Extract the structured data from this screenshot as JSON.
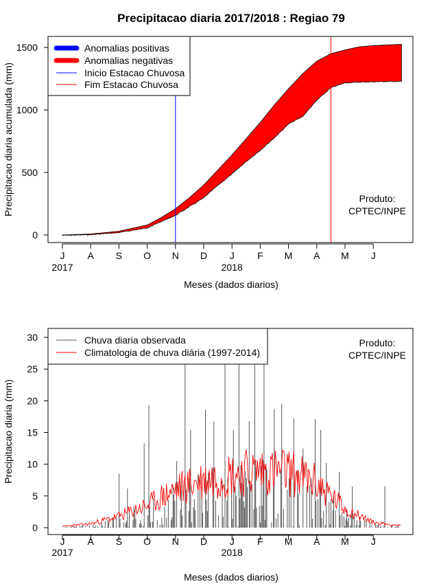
{
  "title": "Precipitacao diaria 2017/2018 : Regiao 79",
  "charts": [
    {
      "type": "area",
      "xlabel": "Meses (dados diarios)",
      "ylabel": "Precipitacao diaria acumulada (mm)",
      "ylim": [
        0,
        1500
      ],
      "yticks": [
        0,
        500,
        1000,
        1500
      ],
      "months": [
        "J",
        "A",
        "S",
        "O",
        "N",
        "D",
        "J",
        "F",
        "M",
        "A",
        "M",
        "J"
      ],
      "years": [
        {
          "label": "2017",
          "month_index": 0
        },
        {
          "label": "2018",
          "month_index": 6
        }
      ],
      "legend": [
        "Anomalias positivas",
        "Anomalias negativas",
        "Inicio Estacao Chuvosa",
        "Fim Estacao Chuvosa"
      ],
      "legend_colors": [
        "#0000ff",
        "#ff0000",
        "#0000ff",
        "#ff0000"
      ],
      "onset_month": 4.0,
      "end_month": 9.5,
      "product_label": [
        "Produto:",
        "CPTEC/INPE"
      ],
      "series": {
        "month": [
          0,
          1,
          2,
          3,
          3.5,
          4,
          4.5,
          5,
          5.5,
          6,
          6.5,
          7,
          7.5,
          8,
          8.5,
          9,
          9.5,
          10,
          10.5,
          11,
          11.5,
          12
        ],
        "climatology": [
          0,
          8,
          30,
          80,
          140,
          210,
          300,
          400,
          520,
          640,
          770,
          900,
          1040,
          1170,
          1290,
          1390,
          1450,
          1480,
          1505,
          1515,
          1520,
          1525
        ],
        "observed": [
          0,
          5,
          22,
          60,
          110,
          160,
          230,
          300,
          400,
          490,
          590,
          680,
          780,
          890,
          950,
          1080,
          1180,
          1220,
          1225,
          1228,
          1230,
          1232
        ]
      }
    },
    {
      "type": "bar",
      "xlabel": "Meses (dados diarios)",
      "ylabel": "Precipitacao diaria (mm)",
      "ylim": [
        0,
        30
      ],
      "yticks": [
        0,
        5,
        10,
        15,
        20,
        25,
        30
      ],
      "months": [
        "J",
        "A",
        "S",
        "O",
        "N",
        "D",
        "J",
        "F",
        "M",
        "A",
        "M",
        "J"
      ],
      "years": [
        {
          "label": "2017",
          "month_index": 0
        },
        {
          "label": "2018",
          "month_index": 6
        }
      ],
      "legend": [
        "Chuva diaria observada",
        "Climatologia de chuva diária (1997-2014)"
      ],
      "legend_colors": [
        "#555555",
        "#ff0000"
      ],
      "product_label": [
        "Produto:",
        "CPTEC/INPE"
      ],
      "climatology_envelope": {
        "month": [
          0,
          1,
          2,
          3,
          4,
          5,
          6,
          7,
          8,
          9,
          10,
          11,
          12
        ],
        "mm": [
          0.2,
          0.6,
          1.8,
          3.5,
          6.0,
          7.5,
          8.5,
          9.0,
          8.8,
          7.0,
          3.0,
          0.8,
          0.3
        ]
      },
      "observed_envelope": {
        "month": [
          0,
          1,
          2,
          3,
          4,
          5,
          6,
          7,
          8,
          9,
          10,
          11,
          12
        ],
        "mm": [
          0.1,
          0.3,
          1.2,
          3.0,
          4.5,
          6.0,
          6.5,
          7.0,
          6.5,
          5.0,
          2.0,
          0.5,
          0.2
        ]
      },
      "observed_peaks": [
        {
          "month": 2.0,
          "mm": 8.5
        },
        {
          "month": 2.3,
          "mm": 6.2
        },
        {
          "month": 2.9,
          "mm": 13.3
        },
        {
          "month": 3.05,
          "mm": 19.3
        },
        {
          "month": 4.05,
          "mm": 10.5
        },
        {
          "month": 4.35,
          "mm": 30
        },
        {
          "month": 4.55,
          "mm": 15.4
        },
        {
          "month": 5.05,
          "mm": 18.6
        },
        {
          "month": 5.35,
          "mm": 16.7
        },
        {
          "month": 5.75,
          "mm": 30
        },
        {
          "month": 6.05,
          "mm": 15.4
        },
        {
          "month": 6.25,
          "mm": 30
        },
        {
          "month": 6.6,
          "mm": 16.8
        },
        {
          "month": 6.8,
          "mm": 30
        },
        {
          "month": 7.15,
          "mm": 30
        },
        {
          "month": 7.5,
          "mm": 18.7
        },
        {
          "month": 7.75,
          "mm": 19.5
        },
        {
          "month": 8.2,
          "mm": 17.2
        },
        {
          "month": 8.5,
          "mm": 12.5
        },
        {
          "month": 8.95,
          "mm": 17.1
        },
        {
          "month": 9.15,
          "mm": 15.4
        },
        {
          "month": 9.35,
          "mm": 10.2
        },
        {
          "month": 9.8,
          "mm": 8.8
        },
        {
          "month": 10.25,
          "mm": 6.5
        },
        {
          "month": 11.4,
          "mm": 6.5
        }
      ]
    }
  ]
}
